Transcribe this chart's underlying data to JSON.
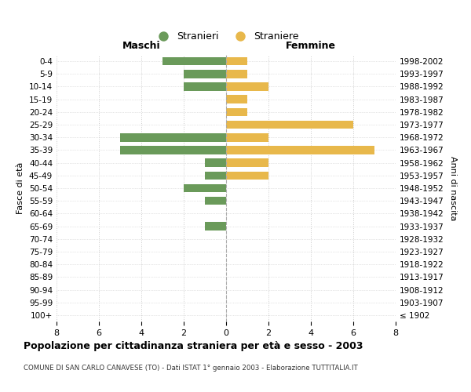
{
  "age_groups": [
    "0-4",
    "5-9",
    "10-14",
    "15-19",
    "20-24",
    "25-29",
    "30-34",
    "35-39",
    "40-44",
    "45-49",
    "50-54",
    "55-59",
    "60-64",
    "65-69",
    "70-74",
    "75-79",
    "80-84",
    "85-89",
    "90-94",
    "95-99",
    "100+"
  ],
  "birth_years": [
    "1998-2002",
    "1993-1997",
    "1988-1992",
    "1983-1987",
    "1978-1982",
    "1973-1977",
    "1968-1972",
    "1963-1967",
    "1958-1962",
    "1953-1957",
    "1948-1952",
    "1943-1947",
    "1938-1942",
    "1933-1937",
    "1928-1932",
    "1923-1927",
    "1918-1922",
    "1913-1917",
    "1908-1912",
    "1903-1907",
    "≤ 1902"
  ],
  "stranieri": [
    3,
    2,
    2,
    0,
    0,
    0,
    5,
    5,
    1,
    1,
    2,
    1,
    0,
    1,
    0,
    0,
    0,
    0,
    0,
    0,
    0
  ],
  "straniere": [
    1,
    1,
    2,
    1,
    1,
    6,
    2,
    7,
    2,
    2,
    0,
    0,
    0,
    0,
    0,
    0,
    0,
    0,
    0,
    0,
    0
  ],
  "color_stranieri": "#6a9a5a",
  "color_straniere": "#e8b84b",
  "xlabel_left": "Maschi",
  "xlabel_right": "Femmine",
  "ylabel_left": "Fasce di età",
  "ylabel_right": "Anni di nascita",
  "title": "Popolazione per cittadinanza straniera per età e sesso - 2003",
  "subtitle": "COMUNE DI SAN CARLO CANAVESE (TO) - Dati ISTAT 1° gennaio 2003 - Elaborazione TUTTITALIA.IT",
  "legend_stranieri": "Stranieri",
  "legend_straniere": "Straniere",
  "xlim": 8,
  "background_color": "#ffffff",
  "grid_color": "#cccccc"
}
